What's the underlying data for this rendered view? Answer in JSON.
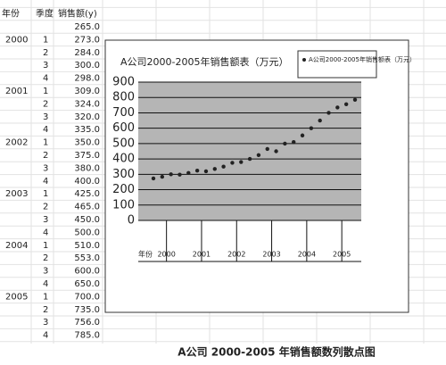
{
  "table": {
    "header": [
      "年份",
      "季度",
      "销售额(y)"
    ],
    "rows": [
      [
        null,
        null,
        "265.0"
      ],
      [
        "2000",
        "1",
        "273.0"
      ],
      [
        null,
        "2",
        "284.0"
      ],
      [
        null,
        "3",
        "300.0"
      ],
      [
        null,
        "4",
        "298.0"
      ],
      [
        "2001",
        "1",
        "309.0"
      ],
      [
        null,
        "2",
        "324.0"
      ],
      [
        null,
        "3",
        "320.0"
      ],
      [
        null,
        "4",
        "335.0"
      ],
      [
        "2002",
        "1",
        "350.0"
      ],
      [
        null,
        "2",
        "375.0"
      ],
      [
        null,
        "3",
        "380.0"
      ],
      [
        null,
        "4",
        "400.0"
      ],
      [
        "2003",
        "1",
        "425.0"
      ],
      [
        null,
        "2",
        "465.0"
      ],
      [
        null,
        "3",
        "450.0"
      ],
      [
        null,
        "4",
        "500.0"
      ],
      [
        "2004",
        "1",
        "510.0"
      ],
      [
        null,
        "2",
        "553.0"
      ],
      [
        null,
        "3",
        "600.0"
      ],
      [
        null,
        "4",
        "650.0"
      ],
      [
        "2005",
        "1",
        "700.0"
      ],
      [
        null,
        "2",
        "735.0"
      ],
      [
        null,
        "3",
        "756.0"
      ],
      [
        null,
        "4",
        "785.0"
      ]
    ]
  },
  "chart_data": {
    "type": "scatter",
    "title": "A公司2000-2005年销售额表（万元）",
    "series": [
      {
        "name": "A公司2000-2005年销售额表（万元）",
        "color": "#222222",
        "values": [
          273,
          284,
          300,
          298,
          309,
          324,
          320,
          335,
          350,
          375,
          380,
          400,
          425,
          465,
          450,
          500,
          510,
          553,
          600,
          650,
          700,
          735,
          756,
          785
        ]
      }
    ],
    "x_labels": [
      "年份",
      "2000",
      "2001",
      "2002",
      "2003",
      "2004",
      "2005"
    ],
    "ylim": [
      0,
      900
    ],
    "yticks": [
      0,
      100,
      200,
      300,
      400,
      500,
      600,
      700,
      800,
      900
    ],
    "grid": true,
    "legend": "top-right"
  },
  "caption": "A公司 2000-2005 年销售额数列散点图"
}
